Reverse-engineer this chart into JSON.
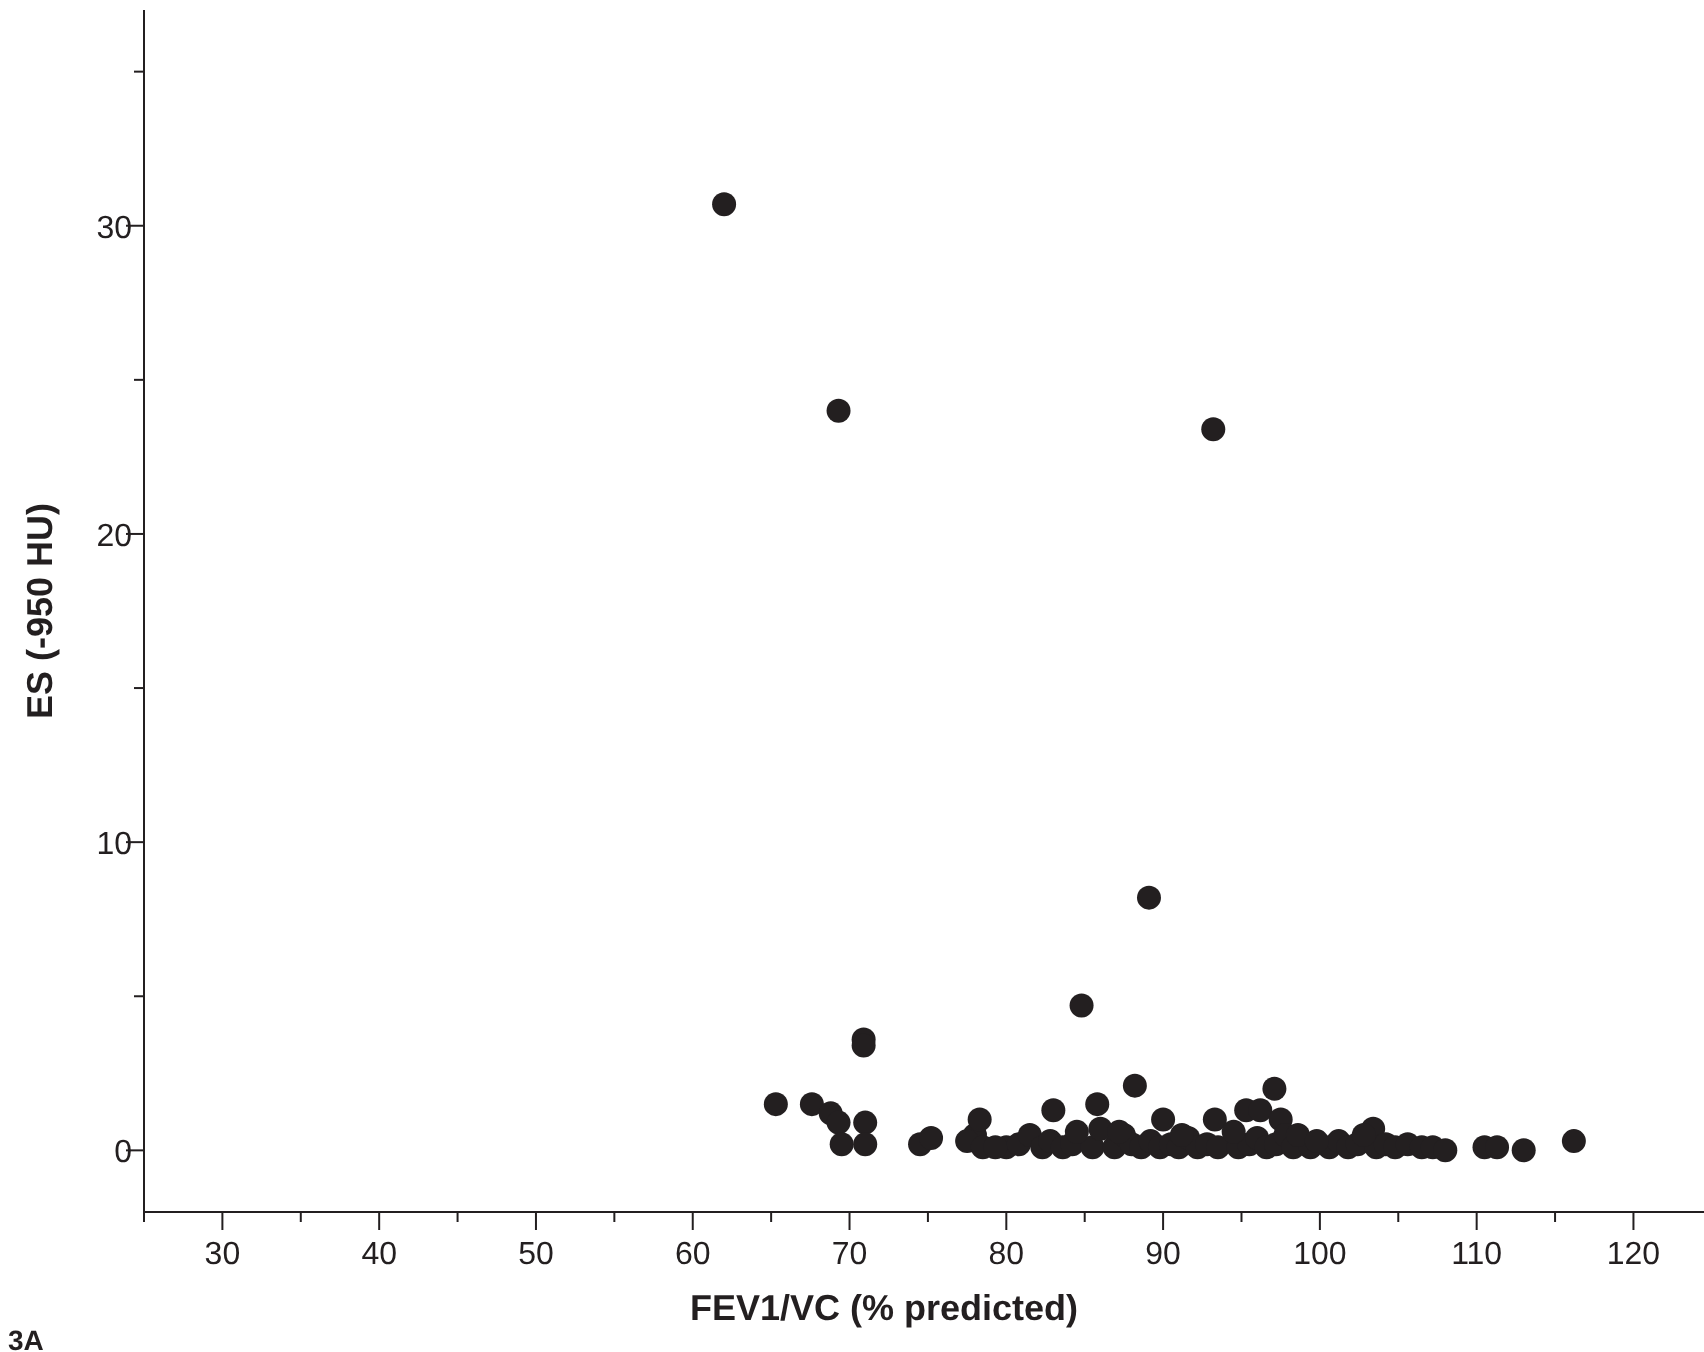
{
  "chart_data": {
    "type": "scatter",
    "xlabel": "FEV1/VC (% predicted)",
    "ylabel": "ES (-950 HU)",
    "annotations": [
      "3A"
    ],
    "marker": "circle",
    "grid": false,
    "xlim": [
      25,
      124.5
    ],
    "xticks": [
      {
        "value": 25,
        "label": null
      },
      30,
      {
        "value": 35,
        "label": null
      },
      40,
      {
        "value": 45,
        "label": null
      },
      50,
      {
        "value": 55,
        "label": null
      },
      60,
      {
        "value": 65,
        "label": null
      },
      70,
      {
        "value": 75,
        "label": null
      },
      80,
      {
        "value": 85,
        "label": null
      },
      90,
      {
        "value": 95,
        "label": null
      },
      100,
      {
        "value": 105,
        "label": null
      },
      110,
      {
        "value": 115,
        "label": null
      },
      120
    ],
    "ylim": [
      -2,
      37
    ],
    "yticks": [
      0,
      {
        "value": 5,
        "label": null
      },
      10,
      {
        "value": 15,
        "label": null
      },
      20,
      {
        "value": 25,
        "label": null
      },
      30,
      {
        "value": 35,
        "label": null
      }
    ],
    "series": [
      {
        "color": "#231f20",
        "x": [
          62,
          69.3,
          93.2,
          89.1,
          84.8,
          70.9,
          70.9,
          65.3,
          67.6,
          68.8,
          69.3,
          69.5,
          71,
          71,
          74.5,
          75.2,
          78,
          78.3,
          80,
          83,
          85.8,
          88.2,
          90,
          95.3,
          96.2,
          97.1,
          97.5,
          93.3,
          103.4,
          110.5,
          111.3,
          113,
          116.2,
          77.5,
          78.5,
          79.3,
          80.8,
          81.5,
          82.3,
          82.8,
          83.6,
          84.2,
          85.5,
          86.9,
          87.5,
          88,
          88.6,
          89.2,
          89.8,
          90.5,
          91,
          91.6,
          92.2,
          92.8,
          93.5,
          94.8,
          95.5,
          96,
          96.6,
          97.2,
          97.8,
          98.3,
          99.4,
          100.6,
          101.2,
          101.8,
          102.4,
          103.6,
          104.2,
          104.8,
          105.6,
          106.5,
          107.2,
          108,
          84.5,
          86,
          91.2,
          94.5,
          98.6,
          102.8,
          87.2,
          99.8
        ],
        "values": [
          30.7,
          24.0,
          23.4,
          8.2,
          4.7,
          3.6,
          3.4,
          1.5,
          1.5,
          1.2,
          0.9,
          0.2,
          0.9,
          0.2,
          0.2,
          0.4,
          0.5,
          1.0,
          0.1,
          1.3,
          1.5,
          2.1,
          1.0,
          1.3,
          1.3,
          2.0,
          1.0,
          1.0,
          0.7,
          0.1,
          0.1,
          0,
          0.3,
          0.3,
          0.1,
          0.1,
          0.2,
          0.5,
          0.1,
          0.3,
          0.1,
          0.2,
          0.1,
          0.1,
          0.5,
          0.2,
          0.1,
          0.3,
          0.1,
          0.2,
          0.1,
          0.4,
          0.1,
          0.2,
          0.1,
          0.1,
          0.2,
          0.4,
          0.1,
          0.2,
          0.5,
          0.1,
          0.1,
          0.1,
          0.3,
          0.1,
          0.2,
          0.1,
          0.2,
          0.1,
          0.2,
          0.1,
          0.1,
          0,
          0.6,
          0.7,
          0.5,
          0.6,
          0.5,
          0.5,
          0.6,
          0.3
        ]
      }
    ]
  }
}
